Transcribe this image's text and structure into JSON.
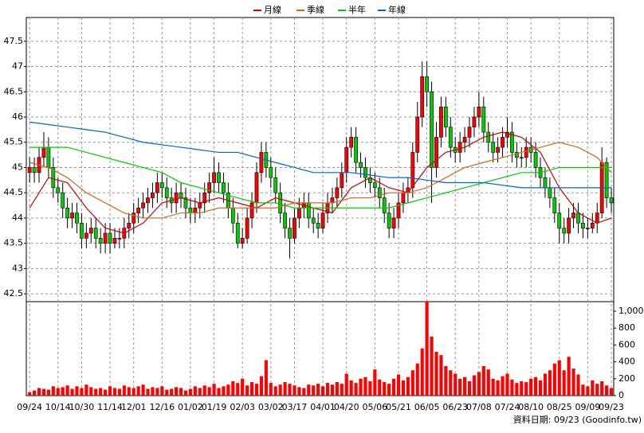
{
  "chart_data": {
    "type": "candlestick",
    "x": [
      0,
      1,
      2,
      3,
      4,
      5,
      6,
      7,
      8,
      9,
      10,
      11,
      12,
      13,
      14,
      15,
      16,
      17,
      18,
      19,
      20,
      21,
      22,
      23,
      24,
      25,
      26,
      27,
      28,
      29,
      30,
      31,
      32,
      33,
      34,
      35,
      36,
      37,
      38,
      39,
      40,
      41,
      42,
      43,
      44,
      45,
      46,
      47,
      48,
      49,
      50,
      51,
      52,
      53,
      54,
      55,
      56,
      57,
      58,
      59,
      60,
      61,
      62,
      63,
      64,
      65,
      66,
      67,
      68,
      69,
      70,
      71,
      72,
      73,
      74,
      75,
      76,
      77,
      78,
      79,
      80,
      81,
      82,
      83,
      84,
      85,
      86,
      87,
      88,
      89,
      90,
      91,
      92,
      93,
      94,
      95,
      96,
      97,
      98,
      99,
      100,
      101,
      102,
      103,
      104,
      105,
      106,
      107,
      108,
      109,
      110,
      111,
      112,
      113,
      114,
      115,
      116,
      117,
      118,
      119,
      120,
      121,
      122,
      123
    ],
    "open": [
      44.9,
      45.0,
      44.9,
      45.2,
      45.4,
      45.0,
      44.6,
      44.5,
      44.2,
      44.0,
      44.1,
      43.9,
      43.6,
      43.7,
      43.8,
      43.6,
      43.5,
      43.7,
      43.5,
      43.6,
      43.6,
      43.8,
      43.9,
      44.1,
      44.2,
      44.3,
      44.4,
      44.5,
      44.7,
      44.6,
      44.4,
      44.3,
      44.5,
      44.4,
      44.2,
      44.1,
      44.2,
      44.3,
      44.5,
      44.7,
      44.9,
      44.7,
      44.5,
      44.2,
      43.9,
      43.5,
      43.6,
      44.0,
      44.3,
      44.9,
      45.3,
      45.0,
      44.8,
      44.5,
      44.1,
      43.8,
      43.6,
      44.0,
      44.2,
      44.3,
      44.0,
      43.9,
      43.8,
      44.1,
      44.3,
      44.4,
      44.6,
      44.9,
      45.4,
      45.6,
      45.1,
      45.0,
      44.8,
      44.7,
      44.6,
      44.4,
      44.1,
      43.8,
      44.0,
      44.3,
      44.5,
      44.6,
      45.3,
      46.0,
      46.8,
      46.5,
      45.0,
      45.6,
      46.2,
      45.8,
      45.4,
      45.3,
      45.5,
      45.6,
      45.8,
      46.0,
      46.2,
      45.7,
      45.5,
      45.3,
      45.4,
      45.6,
      45.7,
      45.3,
      45.2,
      45.2,
      45.4,
      45.3,
      45.0,
      44.8,
      44.6,
      44.4,
      44.1,
      43.8,
      43.7,
      44.0,
      44.1,
      43.9,
      43.8,
      43.8,
      43.9,
      44.1,
      45.1,
      44.4
    ],
    "high": [
      45.2,
      45.2,
      45.4,
      45.7,
      45.6,
      45.2,
      44.8,
      44.7,
      44.4,
      44.3,
      44.3,
      44.1,
      43.9,
      44.0,
      44.0,
      43.8,
      43.9,
      43.9,
      43.8,
      43.8,
      44.0,
      44.1,
      44.3,
      44.4,
      44.5,
      44.6,
      44.7,
      44.9,
      44.9,
      44.8,
      44.6,
      44.7,
      44.7,
      44.6,
      44.4,
      44.4,
      44.5,
      44.7,
      44.9,
      45.2,
      45.1,
      44.9,
      44.7,
      44.4,
      44.1,
      43.8,
      44.2,
      44.5,
      45.1,
      45.5,
      45.5,
      45.2,
      45.0,
      44.7,
      44.3,
      44.0,
      44.2,
      44.4,
      44.5,
      44.5,
      44.2,
      44.1,
      44.3,
      44.5,
      44.6,
      44.8,
      45.1,
      45.6,
      45.8,
      45.8,
      45.3,
      45.2,
      45.0,
      44.9,
      44.8,
      44.6,
      44.3,
      44.2,
      44.5,
      44.7,
      44.8,
      45.5,
      46.3,
      47.1,
      47.1,
      46.7,
      45.9,
      46.4,
      46.4,
      46.0,
      45.6,
      45.7,
      45.8,
      46.0,
      46.2,
      46.5,
      46.4,
      45.9,
      45.7,
      45.6,
      45.8,
      46.0,
      45.9,
      45.5,
      45.4,
      45.6,
      45.6,
      45.5,
      45.2,
      45.0,
      44.8,
      44.6,
      44.3,
      44.0,
      44.2,
      44.3,
      44.3,
      44.1,
      44.0,
      44.1,
      44.3,
      45.4,
      45.2,
      44.6
    ],
    "low": [
      44.7,
      44.7,
      44.7,
      45.0,
      44.8,
      44.4,
      44.3,
      44.0,
      43.8,
      43.8,
      43.7,
      43.4,
      43.4,
      43.5,
      43.4,
      43.3,
      43.3,
      43.3,
      43.4,
      43.4,
      43.4,
      43.6,
      43.7,
      43.9,
      44.0,
      44.1,
      44.2,
      44.3,
      44.4,
      44.2,
      44.1,
      44.1,
      44.2,
      44.0,
      43.9,
      43.9,
      44.0,
      44.1,
      44.3,
      44.5,
      44.5,
      44.3,
      44.0,
      43.7,
      43.4,
      43.4,
      43.5,
      43.8,
      44.1,
      44.7,
      44.8,
      44.6,
      44.3,
      43.9,
      43.6,
      43.2,
      43.5,
      43.8,
      44.0,
      43.8,
      43.7,
      43.6,
      43.7,
      43.9,
      44.1,
      44.2,
      44.4,
      44.7,
      45.2,
      44.9,
      44.8,
      44.6,
      44.5,
      44.4,
      44.2,
      43.9,
      43.6,
      43.6,
      43.8,
      44.1,
      44.3,
      44.4,
      45.1,
      45.8,
      46.2,
      44.3,
      44.8,
      45.4,
      45.6,
      45.2,
      45.1,
      45.1,
      45.3,
      45.4,
      45.6,
      45.8,
      45.5,
      45.3,
      45.1,
      45.1,
      45.2,
      45.4,
      45.1,
      45.0,
      45.0,
      45.0,
      45.1,
      44.8,
      44.6,
      44.4,
      44.2,
      43.9,
      43.5,
      43.5,
      43.5,
      43.8,
      43.7,
      43.6,
      43.6,
      43.7,
      43.7,
      44.0,
      44.2,
      44.1
    ],
    "close": [
      45.0,
      44.9,
      45.2,
      45.4,
      45.0,
      44.6,
      44.5,
      44.2,
      44.0,
      44.1,
      43.9,
      43.6,
      43.7,
      43.8,
      43.6,
      43.5,
      43.7,
      43.5,
      43.6,
      43.6,
      43.8,
      43.9,
      44.1,
      44.2,
      44.3,
      44.4,
      44.5,
      44.7,
      44.6,
      44.4,
      44.3,
      44.5,
      44.4,
      44.2,
      44.1,
      44.2,
      44.3,
      44.5,
      44.7,
      44.9,
      44.7,
      44.5,
      44.2,
      43.9,
      43.5,
      43.6,
      44.0,
      44.3,
      44.9,
      45.3,
      45.0,
      44.8,
      44.5,
      44.1,
      43.8,
      43.6,
      44.0,
      44.2,
      44.3,
      44.0,
      43.9,
      43.8,
      44.1,
      44.3,
      44.4,
      44.6,
      44.9,
      45.4,
      45.6,
      45.1,
      45.0,
      44.8,
      44.7,
      44.6,
      44.4,
      44.1,
      43.8,
      44.0,
      44.3,
      44.5,
      44.6,
      45.3,
      46.0,
      46.8,
      46.5,
      45.0,
      45.6,
      46.2,
      45.8,
      45.4,
      45.3,
      45.5,
      45.6,
      45.8,
      46.0,
      46.2,
      45.7,
      45.5,
      45.3,
      45.4,
      45.6,
      45.7,
      45.3,
      45.2,
      45.2,
      45.4,
      45.3,
      45.0,
      44.8,
      44.6,
      44.4,
      44.1,
      43.8,
      43.7,
      44.0,
      44.1,
      43.9,
      43.8,
      43.8,
      43.9,
      44.1,
      45.1,
      44.4,
      44.3
    ],
    "up_color": "#ff0000",
    "down_color": "#00cc00",
    "xlim": [
      -0.7,
      123.5
    ],
    "ylim": [
      42.36,
      47.97
    ],
    "yticks": [
      42.5,
      43,
      43.5,
      44,
      44.5,
      45,
      45.5,
      46,
      46.5,
      47,
      47.5
    ],
    "xticks": [
      {
        "value": 0,
        "label": "09/24"
      },
      {
        "value": 6,
        "label": "10/14"
      },
      {
        "value": 11,
        "label": "10/30"
      },
      {
        "value": 17,
        "label": "11/14"
      },
      {
        "value": 22,
        "label": "12/01"
      },
      {
        "value": 28,
        "label": "12/16"
      },
      {
        "value": 34,
        "label": "01/02"
      },
      {
        "value": 39,
        "label": "01/19"
      },
      {
        "value": 45,
        "label": "02/03"
      },
      {
        "value": 51,
        "label": "03/02"
      },
      {
        "value": 56,
        "label": "03/17"
      },
      {
        "value": 62,
        "label": "04/01"
      },
      {
        "value": 67,
        "label": "04/20"
      },
      {
        "value": 73,
        "label": "05/06"
      },
      {
        "value": 78,
        "label": "05/21"
      },
      {
        "value": 84,
        "label": "06/05"
      },
      {
        "value": 90,
        "label": "06/23"
      },
      {
        "value": 95,
        "label": "07/08"
      },
      {
        "value": 101,
        "label": "07/24"
      },
      {
        "value": 106,
        "label": "08/10"
      },
      {
        "value": 112,
        "label": "08/25"
      },
      {
        "value": 118,
        "label": "09/09"
      },
      {
        "value": 123,
        "label": "09/23"
      }
    ],
    "grid": true,
    "lines": {
      "x": [
        0,
        4,
        8,
        12,
        16,
        20,
        24,
        28,
        32,
        36,
        40,
        44,
        48,
        52,
        56,
        60,
        64,
        68,
        72,
        76,
        80,
        84,
        88,
        92,
        96,
        100,
        104,
        108,
        112,
        116,
        120,
        123
      ],
      "series": [
        {
          "name": "月線",
          "color": "#cc0000",
          "values": [
            44.2,
            44.8,
            44.7,
            44.2,
            43.8,
            43.7,
            43.9,
            44.3,
            44.4,
            44.3,
            44.4,
            44.3,
            44.2,
            44.4,
            44.3,
            44.2,
            44.1,
            44.6,
            44.8,
            44.6,
            44.5,
            45.0,
            45.3,
            45.4,
            45.6,
            45.7,
            45.6,
            45.3,
            44.6,
            44.1,
            43.9,
            44.0
          ]
        },
        {
          "name": "季線",
          "color": "#d2691e",
          "values": [
            45.1,
            45.0,
            44.8,
            44.5,
            44.3,
            44.1,
            44.0,
            44.0,
            44.1,
            44.1,
            44.2,
            44.2,
            44.2,
            44.2,
            44.3,
            44.3,
            44.3,
            44.4,
            44.4,
            44.5,
            44.5,
            44.6,
            44.8,
            45.0,
            45.1,
            45.2,
            45.3,
            45.4,
            45.5,
            45.4,
            45.2,
            44.9
          ]
        },
        {
          "name": "半年",
          "color": "#00cc00",
          "values": [
            45.4,
            45.4,
            45.4,
            45.3,
            45.2,
            45.1,
            45.0,
            44.9,
            44.7,
            44.6,
            44.5,
            44.4,
            44.3,
            44.3,
            44.2,
            44.2,
            44.2,
            44.2,
            44.2,
            44.2,
            44.3,
            44.4,
            44.5,
            44.6,
            44.7,
            44.8,
            44.9,
            44.9,
            45.0,
            45.0,
            45.0,
            45.0
          ]
        },
        {
          "name": "年線",
          "color": "#0066cc",
          "values": [
            45.9,
            45.85,
            45.8,
            45.75,
            45.7,
            45.6,
            45.5,
            45.45,
            45.4,
            45.35,
            45.3,
            45.3,
            45.2,
            45.1,
            45.0,
            44.9,
            44.9,
            44.9,
            44.85,
            44.8,
            44.8,
            44.75,
            44.7,
            44.7,
            44.7,
            44.65,
            44.6,
            44.6,
            44.6,
            44.6,
            44.6,
            44.6
          ]
        }
      ]
    },
    "volume": {
      "color": "#ff0000",
      "values": [
        40,
        60,
        90,
        80,
        70,
        110,
        90,
        100,
        120,
        80,
        110,
        90,
        130,
        100,
        80,
        90,
        70,
        110,
        90,
        80,
        120,
        100,
        90,
        110,
        130,
        80,
        100,
        90,
        110,
        70,
        80,
        100,
        90,
        60,
        80,
        110,
        90,
        120,
        100,
        140,
        90,
        110,
        130,
        170,
        150,
        200,
        120,
        160,
        140,
        230,
        420,
        150,
        110,
        130,
        160,
        140,
        120,
        100,
        90,
        130,
        120,
        140,
        110,
        150,
        130,
        160,
        140,
        260,
        180,
        150,
        200,
        220,
        170,
        310,
        190,
        160,
        140,
        200,
        250,
        180,
        220,
        300,
        380,
        560,
        1120,
        700,
        520,
        480,
        350,
        300,
        260,
        200,
        220,
        170,
        240,
        280,
        350,
        310,
        200,
        180,
        230,
        260,
        190,
        150,
        170,
        160,
        200,
        220,
        180,
        260,
        300,
        380,
        420,
        300,
        460,
        320,
        250,
        130,
        110,
        180,
        140,
        170,
        120,
        90
      ],
      "y2lim": [
        0,
        1104
      ],
      "y2ticks": [
        0,
        200,
        400,
        600,
        800,
        {
          "value": 1000,
          "label": "1,000"
        }
      ]
    }
  },
  "footer": "資料日期: 09/23 (Goodinfo.tw)"
}
